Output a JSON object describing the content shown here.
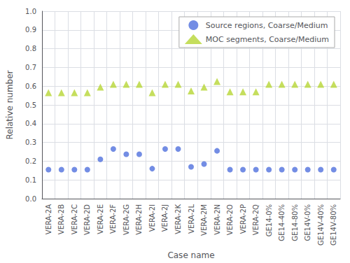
{
  "chart_data": {
    "type": "scatter",
    "xlabel": "Case name",
    "ylabel": "Relative number",
    "categories": [
      "VERA-2A",
      "VERA-2B",
      "VERA-2C",
      "VERA-2D",
      "VERA-2E",
      "VERA-2F",
      "VERA-2G",
      "VERA-2H",
      "VERA-2I",
      "VERA-2J",
      "VERA-2K",
      "VERA-2L",
      "VERA-2M",
      "VERA-2N",
      "VERA-2O",
      "VERA-2P",
      "VERA-2Q",
      "GE14-0%",
      "GE14-40%",
      "GE14-80%",
      "GE14V-0%",
      "GE14V-40%",
      "GE14V-80%"
    ],
    "series": [
      {
        "name": "Source regions, Coarse/Medium",
        "marker": "circle",
        "values": [
          0.155,
          0.155,
          0.155,
          0.155,
          0.21,
          0.265,
          0.237,
          0.237,
          0.16,
          0.265,
          0.265,
          0.17,
          0.185,
          0.255,
          0.155,
          0.155,
          0.155,
          0.155,
          0.155,
          0.155,
          0.155,
          0.155,
          0.155
        ]
      },
      {
        "name": "MOC segments, Coarse/Medium",
        "marker": "triangle",
        "values": [
          0.565,
          0.565,
          0.565,
          0.565,
          0.595,
          0.61,
          0.61,
          0.61,
          0.565,
          0.61,
          0.61,
          0.575,
          0.595,
          0.625,
          0.57,
          0.57,
          0.57,
          0.61,
          0.61,
          0.61,
          0.61,
          0.61,
          0.61
        ]
      }
    ],
    "ylim": [
      0.0,
      1.0
    ],
    "yticks": [
      {
        "value": 0,
        "label": "0.0"
      },
      0.1,
      0.2,
      0.3,
      0.4,
      0.5,
      0.6,
      0.7,
      0.8,
      0.9,
      {
        "value": 1,
        "label": "1.0"
      }
    ],
    "grid": true,
    "legend": "upper right"
  }
}
